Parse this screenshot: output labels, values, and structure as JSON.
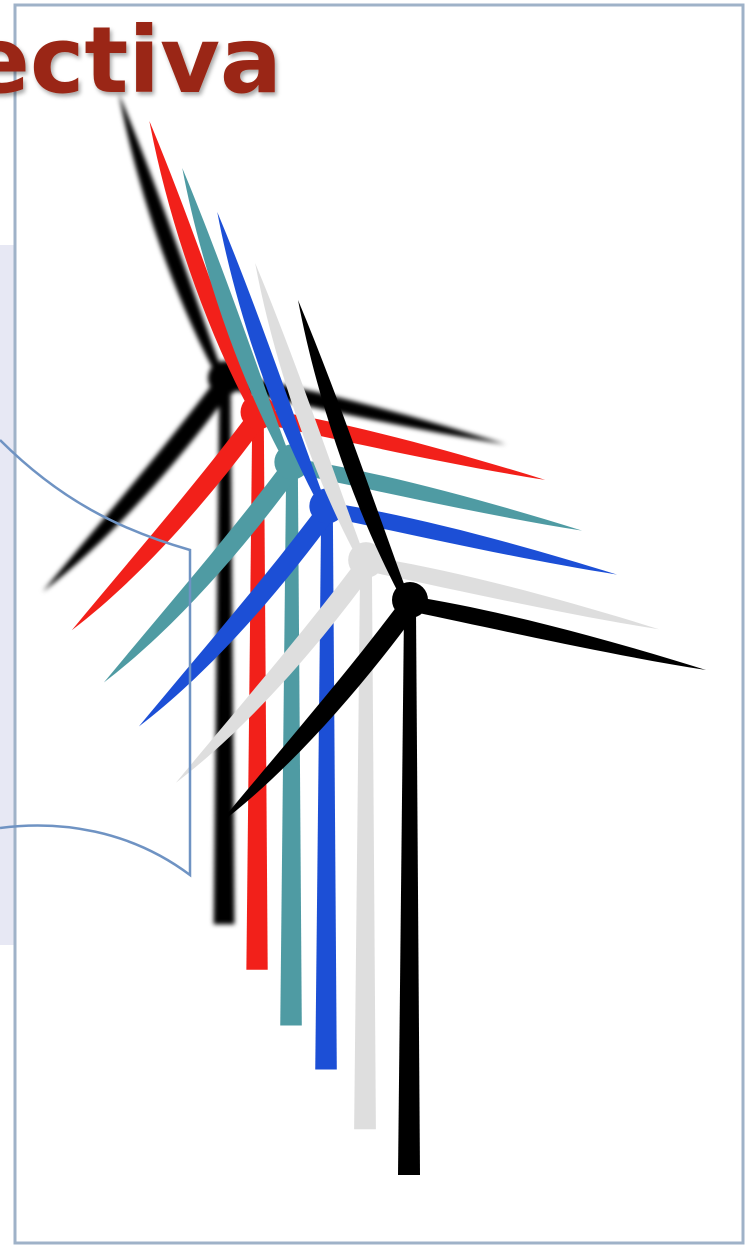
{
  "header": {
    "title": "ectiva"
  }
}
